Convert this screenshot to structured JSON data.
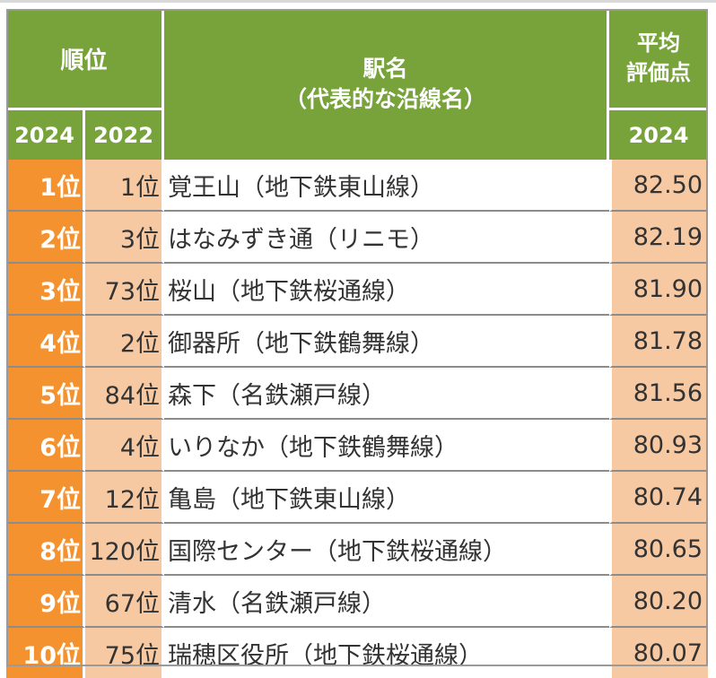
{
  "header": {
    "rank": "順位",
    "station_line1": "駅名",
    "station_line2": "（代表的な沿線名）",
    "score_line1": "平均",
    "score_line2": "評価点",
    "year_current": "2024",
    "year_previous": "2022",
    "score_year": "2024"
  },
  "rows": [
    {
      "rank_2024": "1位",
      "rank_2022": "1位",
      "station": "覚王山（地下鉄東山線）",
      "score": "82.50"
    },
    {
      "rank_2024": "2位",
      "rank_2022": "3位",
      "station": "はなみずき通（リニモ）",
      "score": "82.19"
    },
    {
      "rank_2024": "3位",
      "rank_2022": "73位",
      "station": "桜山（地下鉄桜通線）",
      "score": "81.90"
    },
    {
      "rank_2024": "4位",
      "rank_2022": "2位",
      "station": "御器所（地下鉄鶴舞線）",
      "score": "81.78"
    },
    {
      "rank_2024": "5位",
      "rank_2022": "84位",
      "station": "森下（名鉄瀬戸線）",
      "score": "81.56"
    },
    {
      "rank_2024": "6位",
      "rank_2022": "4位",
      "station": "いりなか（地下鉄鶴舞線）",
      "score": "80.93"
    },
    {
      "rank_2024": "7位",
      "rank_2022": "12位",
      "station": "亀島（地下鉄東山線）",
      "score": "80.74"
    },
    {
      "rank_2024": "8位",
      "rank_2022": "120位",
      "station": "国際センター（地下鉄桜通線）",
      "score": "80.65"
    },
    {
      "rank_2024": "9位",
      "rank_2022": "67位",
      "station": "清水（名鉄瀬戸線）",
      "score": "80.20"
    },
    {
      "rank_2024": "10位",
      "rank_2022": "75位",
      "station": "瑞穂区役所（地下鉄桜通線）",
      "score": "80.07"
    }
  ],
  "colors": {
    "header_green": "#77a33a",
    "rank_orange": "#f4922f",
    "light_orange": "#f6c9a3"
  }
}
